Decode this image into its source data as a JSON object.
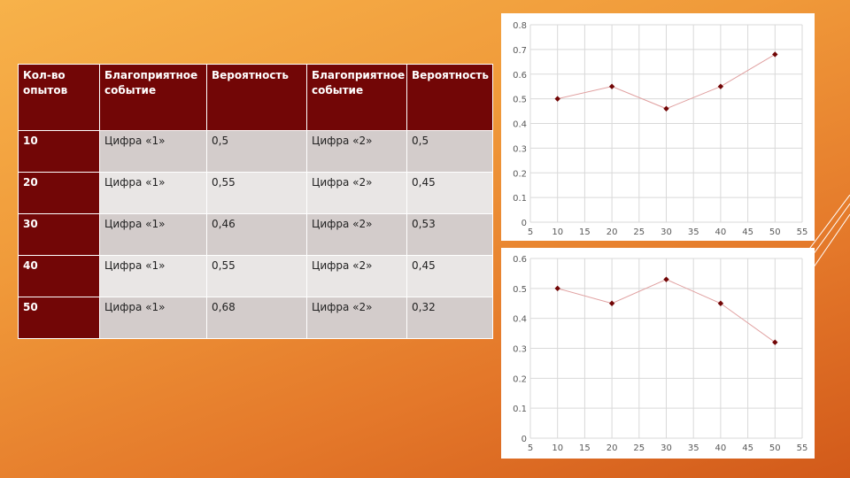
{
  "table": {
    "headers": [
      "Кол-во опытов",
      "Благоприятное событие",
      "Вероятность",
      "Благоприятное событие",
      "Вероятность"
    ],
    "rows": [
      [
        "10",
        "Цифра «1»",
        "0,5",
        "Цифра «2»",
        "0,5"
      ],
      [
        "20",
        "Цифра «1»",
        "0,55",
        "Цифра «2»",
        "0,45"
      ],
      [
        "30",
        "Цифра «1»",
        "0,46",
        "Цифра «2»",
        "0,53"
      ],
      [
        "40",
        "Цифра «1»",
        "0,55",
        "Цифра «2»",
        "0,45"
      ],
      [
        "50",
        "Цифра «1»",
        "0,68",
        "Цифра «2»",
        "0,32"
      ]
    ]
  },
  "chart_data": [
    {
      "type": "line",
      "x": [
        10,
        20,
        30,
        40,
        50
      ],
      "y": [
        0.5,
        0.55,
        0.46,
        0.55,
        0.68
      ],
      "xlim": [
        5,
        55
      ],
      "ylim": [
        0,
        0.8
      ],
      "xticks": [
        "5",
        "10",
        "15",
        "20",
        "25",
        "30",
        "35",
        "40",
        "45",
        "50",
        "55"
      ],
      "yticks": [
        "0",
        "0.1",
        "0.2",
        "0.3",
        "0.4",
        "0.5",
        "0.6",
        "0.7",
        "0.8"
      ],
      "grid": true,
      "line_color": "#e0a0a0",
      "marker_color": "#720606"
    },
    {
      "type": "line",
      "x": [
        10,
        20,
        30,
        40,
        50
      ],
      "y": [
        0.5,
        0.45,
        0.53,
        0.45,
        0.32
      ],
      "xlim": [
        5,
        55
      ],
      "ylim": [
        0,
        0.6
      ],
      "xticks": [
        "5",
        "10",
        "15",
        "20",
        "25",
        "30",
        "35",
        "40",
        "45",
        "50",
        "55"
      ],
      "yticks": [
        "0",
        "0.1",
        "0.2",
        "0.3",
        "0.4",
        "0.5",
        "0.6"
      ],
      "grid": true,
      "line_color": "#e0a0a0",
      "marker_color": "#720606"
    }
  ]
}
